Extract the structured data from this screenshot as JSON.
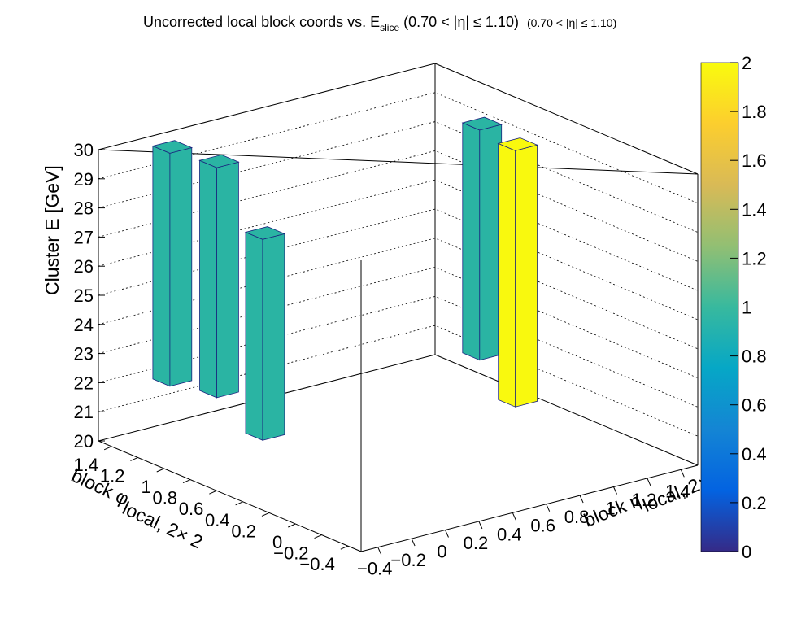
{
  "title": {
    "main": "Uncorrected local block coords vs. E",
    "sub": "slice",
    "range": "(0.70 < |η| ≤ 1.10)",
    "range_small": "(0.70 < |η| ≤ 1.10)"
  },
  "axes": {
    "z_title": "Cluster E  [GeV]",
    "x_title_main": "block η",
    "x_title_sub": "local, 2×",
    "y_title_main": "block φ",
    "y_title_sub": "local, 2× 2"
  },
  "colors": {
    "bar_teal": "#2ab4a3",
    "bar_yellow": "#f9f90e",
    "bar_edge": "#1a237e",
    "palette": [
      "#352a87",
      "#0363e1",
      "#1485d4",
      "#06a7c6",
      "#38b99e",
      "#92bf73",
      "#d9ba56",
      "#fcce2e",
      "#f9fb0e"
    ]
  },
  "chart_data": {
    "type": "lego3d",
    "title": "Uncorrected local block coords vs. E_slice (0.70 < |η| ≤ 1.10)",
    "xlabel": "block η_local, 2×",
    "ylabel": "block φ_local, 2× 2",
    "zlabel": "Cluster E  [GeV]",
    "xlim": [
      -0.5,
      1.5
    ],
    "ylim": [
      -0.5,
      1.5
    ],
    "zlim": [
      20,
      30
    ],
    "x_ticks": [
      "−0.4",
      "−0.2",
      "0",
      "0.2",
      "0.4",
      "0.6",
      "0.8",
      "1",
      "1.2",
      "1.4"
    ],
    "y_ticks": [
      "−0.4",
      "−0.2",
      "0",
      "0.2",
      "0.4",
      "0.6",
      "0.8",
      "1",
      "1.2",
      "1.4"
    ],
    "z_ticks": [
      "20",
      "21",
      "22",
      "23",
      "24",
      "25",
      "26",
      "27",
      "28",
      "29",
      "30"
    ],
    "colorbar": {
      "min": 0,
      "max": 2,
      "ticks": [
        "0",
        "0.2",
        "0.4",
        "0.6",
        "0.8",
        "1",
        "1.2",
        "1.4",
        "1.6",
        "1.8",
        "2"
      ]
    },
    "bars": [
      {
        "eta": -0.1,
        "phi": 1.45,
        "z_low": 21.6,
        "z_high": 29.6,
        "count": 1,
        "color": "teal"
      },
      {
        "eta": 0.1,
        "phi": 1.35,
        "z_low": 21.1,
        "z_high": 29.0,
        "count": 1,
        "color": "teal"
      },
      {
        "eta": 0.1,
        "phi": 1.0,
        "z_low": 20.3,
        "z_high": 27.2,
        "count": 1,
        "color": "teal"
      },
      {
        "eta": 1.35,
        "phi": 0.95,
        "z_low": 21.3,
        "z_high": 29.2,
        "count": 1,
        "color": "teal"
      },
      {
        "eta": 1.25,
        "phi": 0.55,
        "z_low": 20.6,
        "z_high": 29.4,
        "count": 2,
        "color": "yellow"
      }
    ]
  }
}
